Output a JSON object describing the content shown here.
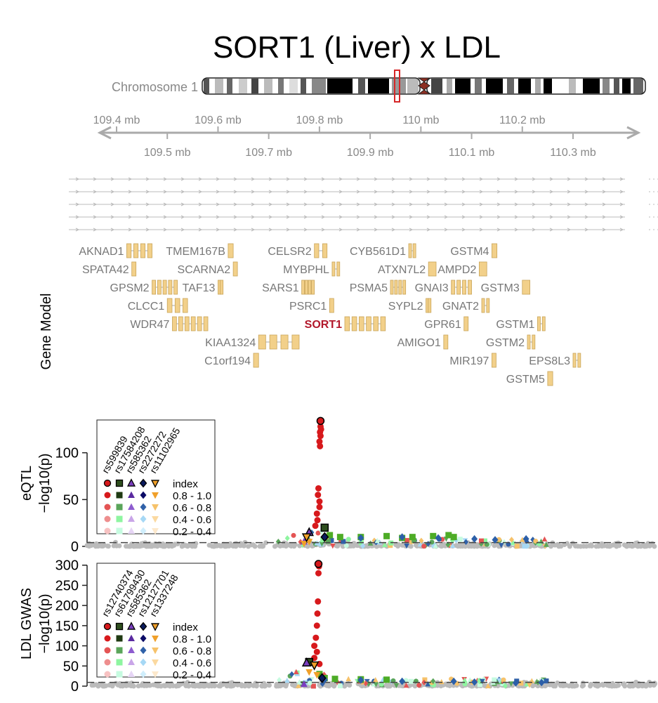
{
  "title": "SORT1 (Liver) x LDL",
  "chromosome": {
    "label": "Chromosome 1",
    "centromere_color": "#8b2e22",
    "highlight_color": "#d62728"
  },
  "coordinate_axis": {
    "unit": "mb",
    "top_ticks": [
      "109.4 mb",
      "109.6 mb",
      "109.8 mb",
      "110 mb",
      "110.2 mb"
    ],
    "bottom_ticks": [
      "109.5 mb",
      "109.7 mb",
      "109.9 mb",
      "110.1 mb",
      "110.3 mb"
    ],
    "range": [
      109.37,
      110.47
    ]
  },
  "gene_model": {
    "label": "Gene Model",
    "exon_color": "#f2d08a",
    "highlight_color": "#b2182b",
    "highlight_gene": "SORT1",
    "genes": [
      {
        "name": "AKNAD1",
        "start": 109.42,
        "end": 109.47,
        "row": 0,
        "exons": 4
      },
      {
        "name": "TMEM167B",
        "start": 109.62,
        "end": 109.63,
        "row": 0,
        "exons": 1
      },
      {
        "name": "CELSR2",
        "start": 109.79,
        "end": 109.815,
        "row": 0,
        "exons": 2
      },
      {
        "name": "CYB561D1",
        "start": 109.976,
        "end": 109.99,
        "row": 0,
        "exons": 2
      },
      {
        "name": "GSTM4",
        "start": 110.14,
        "end": 110.15,
        "row": 0,
        "exons": 1
      },
      {
        "name": "SPATA42",
        "start": 109.43,
        "end": 109.435,
        "row": 1,
        "exons": 1
      },
      {
        "name": "SCARNA2",
        "start": 109.63,
        "end": 109.635,
        "row": 1,
        "exons": 1
      },
      {
        "name": "MYBPHL",
        "start": 109.825,
        "end": 109.84,
        "row": 1,
        "exons": 2
      },
      {
        "name": "ATXN7L2",
        "start": 110.015,
        "end": 110.03,
        "row": 1,
        "exons": 1
      },
      {
        "name": "AMPD2",
        "start": 110.115,
        "end": 110.13,
        "row": 1,
        "exons": 1
      },
      {
        "name": "GPSM2",
        "start": 109.47,
        "end": 109.52,
        "row": 2,
        "exons": 5
      },
      {
        "name": "TAF13",
        "start": 109.6,
        "end": 109.61,
        "row": 2,
        "exons": 2
      },
      {
        "name": "SARS1",
        "start": 109.765,
        "end": 109.79,
        "row": 2,
        "exons": 4
      },
      {
        "name": "PSMA5",
        "start": 109.94,
        "end": 109.97,
        "row": 2,
        "exons": 4
      },
      {
        "name": "GNAI3",
        "start": 110.06,
        "end": 110.1,
        "row": 2,
        "exons": 4
      },
      {
        "name": "GSTM3",
        "start": 110.2,
        "end": 110.215,
        "row": 2,
        "exons": 1
      },
      {
        "name": "CLCC1",
        "start": 109.5,
        "end": 109.54,
        "row": 3,
        "exons": 3
      },
      {
        "name": "PSRC1",
        "start": 109.82,
        "end": 109.825,
        "row": 3,
        "exons": 1
      },
      {
        "name": "SYPL2",
        "start": 110.01,
        "end": 110.02,
        "row": 3,
        "exons": 2
      },
      {
        "name": "GNAT2",
        "start": 110.12,
        "end": 110.135,
        "row": 3,
        "exons": 2
      },
      {
        "name": "WDR47",
        "start": 109.51,
        "end": 109.58,
        "row": 4,
        "exons": 6
      },
      {
        "name": "SORT1",
        "start": 109.85,
        "end": 109.93,
        "row": 4,
        "exons": 6
      },
      {
        "name": "GPR61",
        "start": 110.085,
        "end": 110.09,
        "row": 4,
        "exons": 1
      },
      {
        "name": "GSTM1",
        "start": 110.23,
        "end": 110.245,
        "row": 4,
        "exons": 2
      },
      {
        "name": "KIAA1324",
        "start": 109.68,
        "end": 109.76,
        "row": 5,
        "exons": 4
      },
      {
        "name": "AMIGO1",
        "start": 110.045,
        "end": 110.05,
        "row": 5,
        "exons": 1
      },
      {
        "name": "GSTM2",
        "start": 110.21,
        "end": 110.225,
        "row": 5,
        "exons": 2
      },
      {
        "name": "C1orf194",
        "start": 109.67,
        "end": 109.68,
        "row": 6,
        "exons": 1
      },
      {
        "name": "MIR197",
        "start": 110.14,
        "end": 110.143,
        "row": 6,
        "exons": 1
      },
      {
        "name": "EPS8L3",
        "start": 110.3,
        "end": 110.315,
        "row": 6,
        "exons": 2
      },
      {
        "name": "GSTM5",
        "start": 110.25,
        "end": 110.26,
        "row": 7,
        "exons": 1
      }
    ]
  },
  "chart_data": [
    {
      "type": "scatter",
      "panel": "eQTL",
      "ylabel": [
        "eQTL",
        "−log10(p)"
      ],
      "ylim": [
        0,
        135
      ],
      "yticks": [
        0,
        50,
        100
      ],
      "xlim": [
        109.37,
        110.47
      ],
      "legend": {
        "placement": "top-left",
        "snps": [
          "rs599839",
          "rs17584208",
          "rs585362",
          "rs2272272",
          "rs11102965"
        ],
        "rows": [
          "index",
          "0.8 - 1.0",
          "0.6 - 0.8",
          "0.4 - 0.6",
          "0.2 - 0.4"
        ]
      },
      "series": [
        {
          "snp": "rs599839",
          "shape": "circle",
          "color": "#d7191c",
          "points": [
            [
              109.822,
              134
            ],
            [
              109.822,
              128
            ],
            [
              109.823,
              125
            ],
            [
              109.821,
              122
            ],
            [
              109.822,
              118
            ],
            [
              109.82,
              112
            ],
            [
              109.821,
              107
            ],
            [
              109.818,
              62
            ],
            [
              109.817,
              55
            ],
            [
              109.82,
              48
            ],
            [
              109.82,
              42
            ],
            [
              109.815,
              35
            ],
            [
              109.816,
              28
            ],
            [
              109.812,
              22
            ]
          ]
        },
        {
          "snp": "rs17584208",
          "shape": "square",
          "color": "#4dac26",
          "points": [
            [
              109.83,
              20
            ],
            [
              109.84,
              12
            ],
            [
              109.86,
              10
            ],
            [
              109.9,
              10
            ],
            [
              109.95,
              11
            ],
            [
              109.98,
              9
            ],
            [
              110.0,
              10
            ],
            [
              110.04,
              11
            ],
            [
              110.07,
              12
            ],
            [
              110.08,
              10
            ]
          ]
        },
        {
          "snp": "rs585362",
          "shape": "triangle-up",
          "color": "#7b3fbf",
          "points": [
            [
              109.8,
              15
            ],
            [
              109.795,
              8
            ],
            [
              109.79,
              5
            ]
          ]
        },
        {
          "snp": "rs2272272",
          "shape": "diamond",
          "color": "#2c5fa8",
          "points": [
            [
              109.83,
              10
            ],
            [
              109.9,
              9
            ],
            [
              109.98,
              10
            ],
            [
              110.05,
              9
            ],
            [
              110.12,
              8
            ],
            [
              110.16,
              7
            ],
            [
              110.22,
              8
            ]
          ]
        },
        {
          "snp": "rs11102965",
          "shape": "triangle-down",
          "color": "#f0a02a",
          "points": [
            [
              109.795,
              10
            ],
            [
              109.79,
              3
            ],
            [
              109.8,
              5
            ]
          ]
        }
      ]
    },
    {
      "type": "scatter",
      "panel": "LDL GWAS",
      "ylabel": [
        "LDL GWAS",
        "−log10(p)"
      ],
      "ylim": [
        0,
        310
      ],
      "yticks": [
        0,
        50,
        100,
        150,
        200,
        250,
        300
      ],
      "xlim": [
        109.37,
        110.47
      ],
      "legend": {
        "placement": "top-left",
        "snps": [
          "rs12740374",
          "rs61799430",
          "rs585362",
          "rs12127701",
          "rs1337248"
        ],
        "rows": [
          "index",
          "0.8 - 1.0",
          "0.6 - 0.8",
          "0.4 - 0.6",
          "0.2 - 0.4"
        ]
      },
      "series": [
        {
          "snp": "rs12740374",
          "shape": "circle",
          "color": "#d7191c",
          "points": [
            [
              109.818,
              303
            ],
            [
              109.819,
              297
            ],
            [
              109.818,
              280
            ],
            [
              109.817,
              210
            ],
            [
              109.816,
              180
            ],
            [
              109.815,
              150
            ],
            [
              109.813,
              120
            ],
            [
              109.81,
              100
            ],
            [
              109.815,
              85
            ],
            [
              109.81,
              70
            ],
            [
              109.82,
              55
            ]
          ]
        },
        {
          "snp": "rs61799430",
          "shape": "square",
          "color": "#4dac26",
          "points": [
            [
              109.8,
              60
            ],
            [
              109.82,
              30
            ],
            [
              109.83,
              20
            ],
            [
              109.85,
              18
            ],
            [
              109.9,
              17
            ],
            [
              109.95,
              16
            ]
          ]
        },
        {
          "snp": "rs585362",
          "shape": "triangle-up",
          "color": "#7b3fbf",
          "points": [
            [
              109.795,
              58
            ],
            [
              109.79,
              5
            ]
          ]
        },
        {
          "snp": "rs12127701",
          "shape": "diamond",
          "color": "#2c5fa8",
          "points": [
            [
              109.825,
              20
            ],
            [
              109.83,
              16
            ],
            [
              109.9,
              15
            ],
            [
              109.98,
              12
            ],
            [
              110.08,
              12
            ],
            [
              110.12,
              10
            ],
            [
              110.2,
              8
            ],
            [
              110.25,
              9
            ]
          ]
        },
        {
          "snp": "rs1337248",
          "shape": "triangle-down",
          "color": "#f0a02a",
          "points": [
            [
              109.81,
              52
            ],
            [
              109.8,
              35
            ],
            [
              109.815,
              28
            ]
          ]
        }
      ]
    }
  ]
}
